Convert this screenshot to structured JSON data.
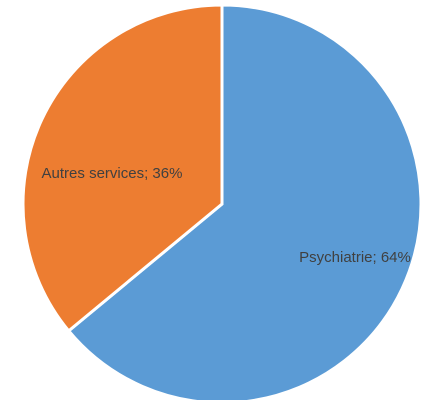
{
  "chart_data": {
    "type": "pie",
    "categories": [
      "Psychiatrie",
      "Autres services"
    ],
    "values": [
      64,
      36
    ],
    "value_labels": [
      "Psychiatrie; 64%",
      "Autres services; 36%"
    ],
    "colors": [
      "#5b9bd5",
      "#ed7d31"
    ]
  }
}
